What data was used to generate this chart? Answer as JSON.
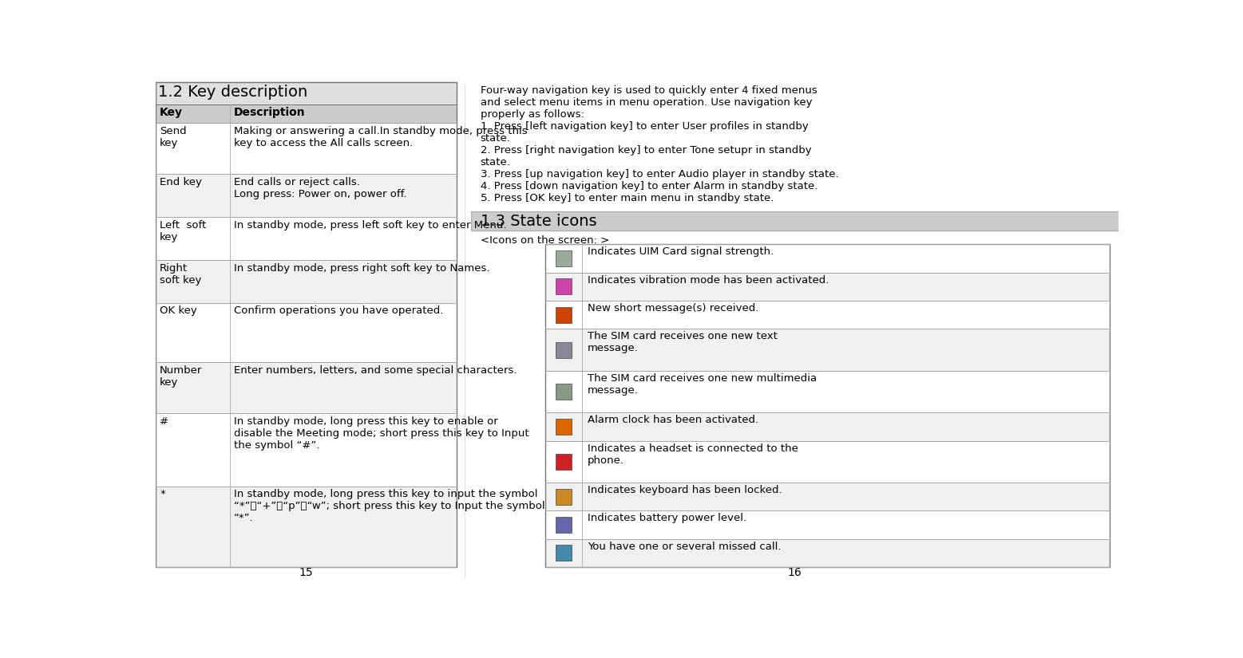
{
  "white": "#ffffff",
  "light_gray": "#cccccc",
  "mid_gray": "#e0e0e0",
  "row_gray": "#f0f0f0",
  "black": "#000000",
  "section1_title": "1.2 Key description",
  "table1_header": [
    "Key",
    "Description"
  ],
  "table1_rows": [
    [
      "Send\nkey",
      "Making or answering a call.In standby mode, press this\nkey to access the All calls screen."
    ],
    [
      "End key",
      "End calls or reject calls.\nLong press: Power on, power off."
    ],
    [
      "Left  soft\nkey",
      "In standby mode, press left soft key to enter Menu."
    ],
    [
      "Right\nsoft key",
      "In standby mode, press right soft key to Names."
    ],
    [
      "OK key",
      "Confirm operations you have operated."
    ],
    [
      "Number\nkey",
      "Enter numbers, letters, and some special characters."
    ],
    [
      "#",
      "In standby mode, long press this key to enable or\ndisable the Meeting mode; short press this key to Input\nthe symbol “#”."
    ],
    [
      "*",
      "In standby mode, long press this key to input the symbol\n“*”、“+”、“p”、“w”; short press this key to Input the symbol\n“*”."
    ]
  ],
  "table1_row_heights": [
    62,
    52,
    52,
    52,
    72,
    62,
    88,
    98
  ],
  "page_num_left": "15",
  "page_num_right": "16",
  "nav_lines": [
    "Four-way navigation key is used to quickly enter 4 fixed menus",
    "and select menu items in menu operation. Use navigation key",
    "properly as follows:",
    "1. Press [left navigation key] to enter User profiles in standby",
    "state.",
    "2. Press [right navigation key] to enter Tone setupr in standby",
    "state.",
    "3. Press [up navigation key] to enter Audio player in standby state.",
    "4. Press [down navigation key] to enter Alarm in standby state.",
    "5. Press [OK key] to enter main menu in standby state."
  ],
  "section2_title": "1.3 State icons",
  "icons_label": "<Icons on the screen: >",
  "table2_rows": [
    "Indicates UIM Card signal strength.",
    "Indicates vibration mode has been activated.",
    "New short message(s) received.",
    "The SIM card receives one new text\nmessage.",
    "The SIM card receives one new multimedia\nmessage.",
    "Alarm clock has been activated.",
    "Indicates a headset is connected to the\nphone.",
    "Indicates keyboard has been locked.",
    "Indicates battery power level.",
    "You have one or several missed call."
  ],
  "table2_row_heights": [
    27,
    27,
    27,
    40,
    40,
    27,
    40,
    27,
    27,
    27
  ]
}
